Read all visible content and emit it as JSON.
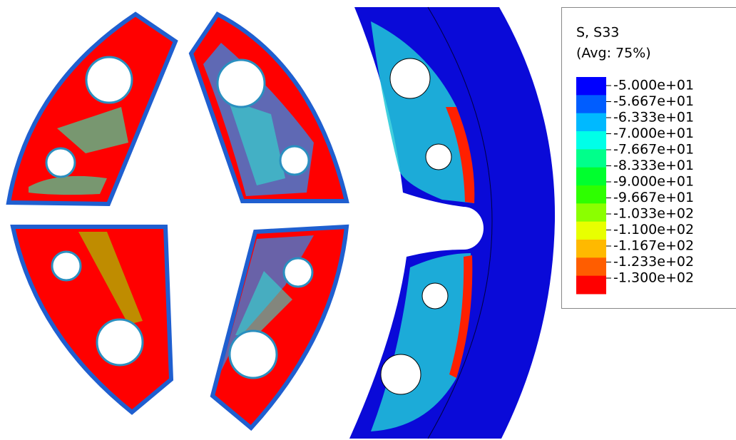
{
  "legend": {
    "title": "S, S33",
    "subtitle": "(Avg: 75%)",
    "labels": [
      "-5.000e+01",
      "-5.667e+01",
      "-6.333e+01",
      "-7.000e+01",
      "-7.667e+01",
      "-8.333e+01",
      "-9.000e+01",
      "-9.667e+01",
      "-1.033e+02",
      "-1.100e+02",
      "-1.167e+02",
      "-1.233e+02",
      "-1.300e+02"
    ],
    "colors": [
      "#0000ff",
      "#005dff",
      "#00b9ff",
      "#00ffe8",
      "#00ff8b",
      "#00ff2e",
      "#2eff00",
      "#8bff00",
      "#e8ff00",
      "#ffb900",
      "#ff5d00",
      "#ff0000"
    ]
  }
}
